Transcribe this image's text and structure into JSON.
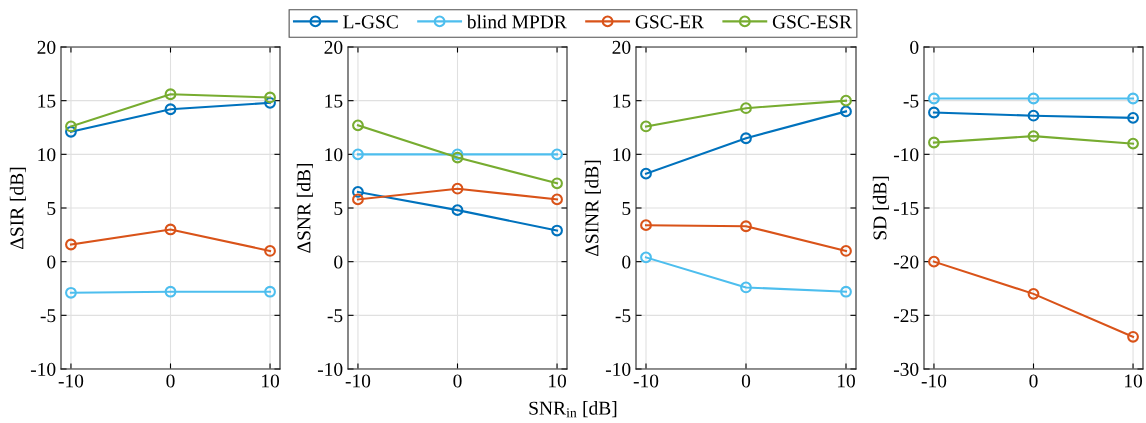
{
  "chart_data": [
    {
      "type": "line",
      "ylabel": "ΔSIR [dB]",
      "x": [
        -10,
        0,
        10
      ],
      "xlim": [
        -11,
        11
      ],
      "xticks": [
        -10,
        0,
        10
      ],
      "ylim": [
        -10,
        20
      ],
      "yticks": [
        -10,
        -5,
        0,
        5,
        10,
        15,
        20
      ],
      "grid": true,
      "marker": "circle",
      "legend": "top",
      "series": [
        {
          "name": "L-GSC",
          "color": "#0072bd",
          "values": [
            12.1,
            14.2,
            14.8
          ]
        },
        {
          "name": "blind MPDR",
          "color": "#4dbeee",
          "values": [
            -2.9,
            -2.8,
            -2.8
          ]
        },
        {
          "name": "GSC-ER",
          "color": "#d95319",
          "values": [
            1.6,
            3.0,
            1.0
          ]
        },
        {
          "name": "GSC-ESR",
          "color": "#77ac30",
          "values": [
            12.6,
            15.6,
            15.3
          ]
        }
      ]
    },
    {
      "type": "line",
      "ylabel": "ΔSNR [dB]",
      "xlabel": "SNR$_{in}$ [dB]",
      "x": [
        -10,
        0,
        10
      ],
      "xlim": [
        -11,
        11
      ],
      "xticks": [
        -10,
        0,
        10
      ],
      "ylim": [
        -10,
        20
      ],
      "yticks": [
        -10,
        -5,
        0,
        5,
        10,
        15,
        20
      ],
      "grid": true,
      "marker": "circle",
      "series": [
        {
          "color": "#0072bd",
          "values": [
            6.5,
            4.8,
            2.9
          ]
        },
        {
          "color": "#4dbeee",
          "values": [
            10.0,
            10.0,
            10.0
          ]
        },
        {
          "color": "#d95319",
          "values": [
            5.8,
            6.8,
            5.8
          ]
        },
        {
          "color": "#77ac30",
          "values": [
            12.7,
            9.7,
            7.3
          ]
        }
      ]
    },
    {
      "type": "line",
      "ylabel": "ΔSINR [dB]",
      "x": [
        -10,
        0,
        10
      ],
      "xlim": [
        -11,
        11
      ],
      "xticks": [
        -10,
        0,
        10
      ],
      "ylim": [
        -10,
        20
      ],
      "yticks": [
        -10,
        -5,
        0,
        5,
        10,
        15,
        20
      ],
      "grid": true,
      "marker": "circle",
      "series": [
        {
          "color": "#0072bd",
          "values": [
            8.2,
            11.5,
            14.0
          ]
        },
        {
          "color": "#4dbeee",
          "values": [
            0.4,
            -2.4,
            -2.8
          ]
        },
        {
          "color": "#d95319",
          "values": [
            3.4,
            3.3,
            1.0
          ]
        },
        {
          "color": "#77ac30",
          "values": [
            12.6,
            14.3,
            15.0
          ]
        }
      ]
    },
    {
      "type": "line",
      "ylabel": "SD [dB]",
      "x": [
        -10,
        0,
        10
      ],
      "xlim": [
        -11,
        11
      ],
      "xticks": [
        -10,
        0,
        10
      ],
      "ylim": [
        -30,
        0
      ],
      "yticks": [
        -30,
        -25,
        -20,
        -15,
        -10,
        -5,
        0
      ],
      "grid": true,
      "marker": "circle",
      "series": [
        {
          "color": "#0072bd",
          "values": [
            -6.1,
            -6.4,
            -6.6
          ]
        },
        {
          "color": "#4dbeee",
          "values": [
            -4.8,
            -4.8,
            -4.8
          ]
        },
        {
          "color": "#d95319",
          "values": [
            -20.0,
            -23.0,
            -27.0
          ]
        },
        {
          "color": "#77ac30",
          "values": [
            -8.9,
            -8.3,
            -9.0
          ]
        }
      ]
    }
  ]
}
